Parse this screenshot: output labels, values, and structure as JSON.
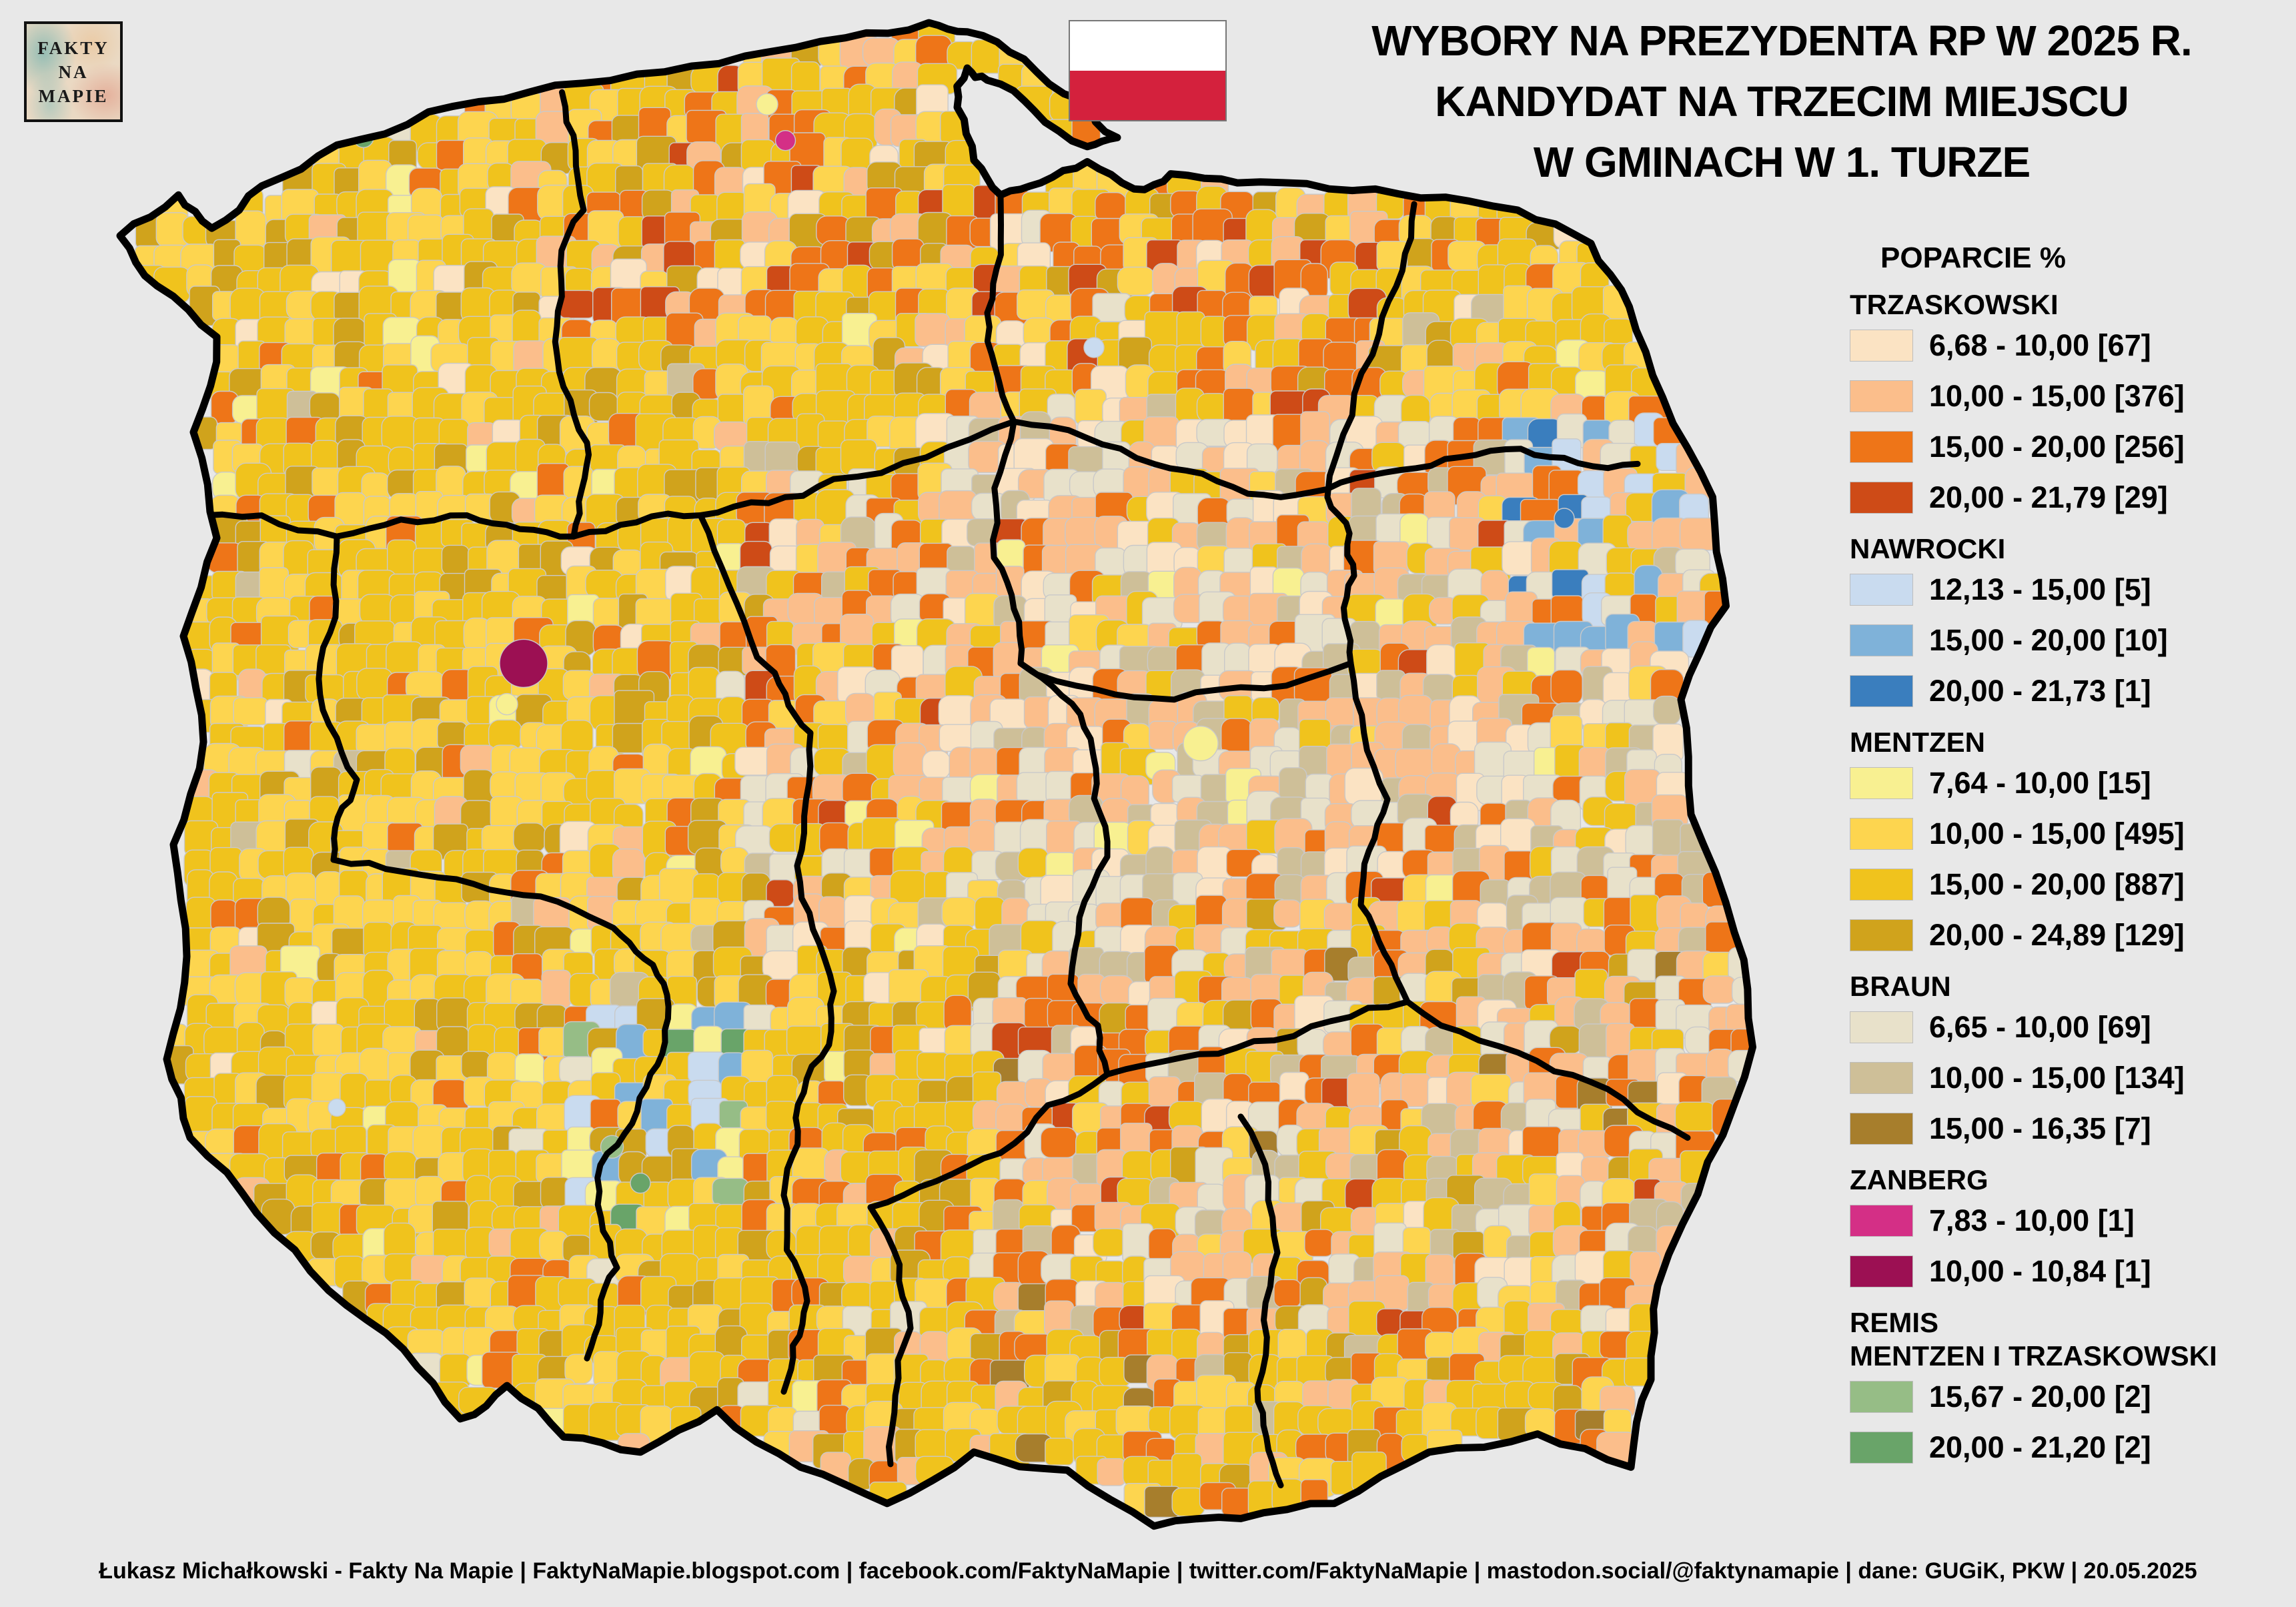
{
  "header": {
    "title_line1": "WYBORY NA PREZYDENTA RP W 2025 R.",
    "title_line2": "KANDYDAT NA TRZECIM MIEJSCU",
    "title_line3": "W GMINACH W 1. TURZE",
    "logo_line1": "FAKTY",
    "logo_line2": "NA",
    "logo_line3": "MAPIE",
    "flag_top_color": "#FFFFFF",
    "flag_bottom_color": "#D4213D"
  },
  "legend": {
    "title": "POPARCIE %",
    "sections": [
      {
        "name": "TRZASKOWSKI",
        "rows": [
          {
            "range": "6,68 - 10,00",
            "count": "[67]",
            "color": "#FBE3C3"
          },
          {
            "range": "10,00 - 15,00",
            "count": "[376]",
            "color": "#FBBE8B"
          },
          {
            "range": "15,00 - 20,00",
            "count": "[256]",
            "color": "#EE7518"
          },
          {
            "range": "20,00 - 21,79",
            "count": "[29]",
            "color": "#CE4B17"
          }
        ]
      },
      {
        "name": "NAWROCKI",
        "rows": [
          {
            "range": "12,13 - 15,00",
            "count": "[5]",
            "color": "#C9DBEF"
          },
          {
            "range": "15,00 - 20,00",
            "count": "[10]",
            "color": "#7FB2D9"
          },
          {
            "range": "20,00 - 21,73",
            "count": "[1]",
            "color": "#3A7EBE"
          }
        ]
      },
      {
        "name": "MENTZEN",
        "rows": [
          {
            "range": "7,64 - 10,00",
            "count": "[15]",
            "color": "#F8F091"
          },
          {
            "range": "10,00 - 15,00",
            "count": "[495]",
            "color": "#FDD54F"
          },
          {
            "range": "15,00 - 20,00",
            "count": "[887]",
            "color": "#F0C31D"
          },
          {
            "range": "20,00 - 24,89",
            "count": "[129]",
            "color": "#D0A31C"
          }
        ]
      },
      {
        "name": "BRAUN",
        "rows": [
          {
            "range": "6,65 - 10,00",
            "count": "[69]",
            "color": "#E8E1CA"
          },
          {
            "range": "10,00 - 15,00",
            "count": "[134]",
            "color": "#CEBF98"
          },
          {
            "range": "15,00 - 16,35",
            "count": "[7]",
            "color": "#A77E2C"
          }
        ]
      },
      {
        "name": "ZANBERG",
        "rows": [
          {
            "range": "7,83 - 10,00",
            "count": "[1]",
            "color": "#D42F86"
          },
          {
            "range": "10,00 - 10,84",
            "count": "[1]",
            "color": "#9C1053"
          }
        ]
      },
      {
        "name": "REMIS",
        "name2": "MENTZEN I TRZASKOWSKI",
        "rows": [
          {
            "range": "15,67 - 20,00",
            "count": "[2]",
            "color": "#96BD86"
          },
          {
            "range": "20,00 - 21,20",
            "count": "[2]",
            "color": "#69A469"
          }
        ]
      }
    ]
  },
  "footer": {
    "text": "Łukasz Michałkowski - Fakty Na Mapie | FaktyNaMapie.blogspot.com | facebook.com/FaktyNaMapie | twitter.com/FaktyNaMapie | mastodon.social/@faktynamapie | dane: GUGiK, PKW | 20.05.2025"
  },
  "map": {
    "background": "#E8E8E8",
    "national_border_color": "#000000",
    "voivodeship_border_color": "#000000",
    "gmina_border_color": "#C9C9C9",
    "palette": {
      "lightpeach": "#FBE3C3",
      "peach": "#FBBE8B",
      "orange": "#EE7518",
      "darkorange": "#CE4B17",
      "blue1": "#C9DBEF",
      "blue2": "#7FB2D9",
      "blue3": "#3A7EBE",
      "paleyellow": "#F8F091",
      "yellow": "#FDD54F",
      "gold": "#F0C31D",
      "darkgold": "#D0A31C",
      "beige": "#E8E1CA",
      "tan": "#CEBF98",
      "brown": "#A77E2C",
      "pink": "#D42F86",
      "magenta": "#9C1053",
      "green1": "#96BD86",
      "green2": "#69A469"
    },
    "zones": [
      {
        "u0": 0.0,
        "v0": 0.0,
        "u1": 1.0,
        "v1": 1.0,
        "weights": {
          "gold": 44,
          "yellow": 28,
          "darkgold": 13,
          "orange": 6,
          "paleyellow": 2,
          "peach": 3,
          "lightpeach": 2,
          "beige": 1,
          "tan": 1
        }
      },
      {
        "u0": 0.26,
        "v0": 0.0,
        "u1": 0.52,
        "v1": 0.2,
        "weights": {
          "gold": 36,
          "yellow": 20,
          "darkgold": 10,
          "orange": 18,
          "darkorange": 5,
          "peach": 7,
          "lightpeach": 4
        }
      },
      {
        "u0": 0.52,
        "v0": 0.06,
        "u1": 0.78,
        "v1": 0.26,
        "weights": {
          "gold": 30,
          "yellow": 12,
          "darkgold": 6,
          "orange": 26,
          "darkorange": 10,
          "peach": 10,
          "lightpeach": 4,
          "beige": 2
        }
      },
      {
        "u0": 0.52,
        "v0": 0.26,
        "u1": 1.0,
        "v1": 0.58,
        "weights": {
          "peach": 28,
          "lightpeach": 13,
          "beige": 17,
          "tan": 12,
          "orange": 14,
          "darkorange": 2,
          "gold": 9,
          "yellow": 3,
          "paleyellow": 2
        }
      },
      {
        "u0": 0.4,
        "v0": 0.3,
        "u1": 0.52,
        "v1": 0.62,
        "weights": {
          "orange": 16,
          "darkorange": 3,
          "peach": 20,
          "lightpeach": 10,
          "gold": 20,
          "yellow": 12,
          "beige": 9,
          "darkgold": 4,
          "paleyellow": 3,
          "tan": 3
        }
      },
      {
        "u0": 0.86,
        "v0": 0.26,
        "u1": 1.0,
        "v1": 0.42,
        "weights": {
          "blue2": 18,
          "blue1": 12,
          "blue3": 5,
          "peach": 18,
          "beige": 14,
          "tan": 8,
          "gold": 14,
          "orange": 11
        }
      },
      {
        "u0": 0.54,
        "v0": 0.58,
        "u1": 1.0,
        "v1": 0.92,
        "weights": {
          "peach": 24,
          "orange": 16,
          "darkorange": 2,
          "beige": 15,
          "tan": 12,
          "gold": 15,
          "yellow": 6,
          "darkgold": 4,
          "lightpeach": 4,
          "brown": 2
        }
      },
      {
        "u0": 0.54,
        "v0": 0.88,
        "u1": 1.0,
        "v1": 1.0,
        "weights": {
          "gold": 40,
          "yellow": 16,
          "darkgold": 14,
          "orange": 14,
          "peach": 9,
          "tan": 4,
          "brown": 3
        }
      },
      {
        "u0": 0.24,
        "v0": 0.7,
        "u1": 0.54,
        "v1": 1.0,
        "weights": {
          "gold": 44,
          "yellow": 22,
          "darkgold": 14,
          "orange": 11,
          "peach": 5,
          "paleyellow": 2,
          "beige": 2
        }
      },
      {
        "u0": 0.295,
        "v0": 0.655,
        "u1": 0.4,
        "v1": 0.8,
        "weights": {
          "gold": 28,
          "yellow": 12,
          "darkgold": 9,
          "blue1": 16,
          "blue2": 14,
          "blue3": 3,
          "orange": 5,
          "green1": 4,
          "green2": 3,
          "paleyellow": 6
        }
      }
    ],
    "special_cells": [
      {
        "u": 0.262,
        "v": 0.428,
        "color": "magenta",
        "r": 36
      },
      {
        "u": 0.252,
        "v": 0.455,
        "color": "paleyellow",
        "r": 16
      },
      {
        "u": 0.419,
        "v": 0.082,
        "color": "pink",
        "r": 15
      },
      {
        "u": 0.408,
        "v": 0.058,
        "color": "paleyellow",
        "r": 16
      },
      {
        "u": 0.166,
        "v": 0.08,
        "color": "green2",
        "r": 15
      },
      {
        "u": 0.315,
        "v": 0.748,
        "color": "green1",
        "r": 17
      },
      {
        "u": 0.332,
        "v": 0.772,
        "color": "green2",
        "r": 15
      },
      {
        "u": 0.036,
        "v": 0.512,
        "color": "blue2",
        "r": 14
      },
      {
        "u": 0.15,
        "v": 0.722,
        "color": "blue1",
        "r": 13
      },
      {
        "u": 0.604,
        "v": 0.219,
        "color": "blue1",
        "r": 15
      },
      {
        "u": 0.668,
        "v": 0.481,
        "color": "paleyellow",
        "r": 26
      },
      {
        "u": 0.886,
        "v": 0.332,
        "color": "blue3",
        "r": 15
      }
    ]
  }
}
